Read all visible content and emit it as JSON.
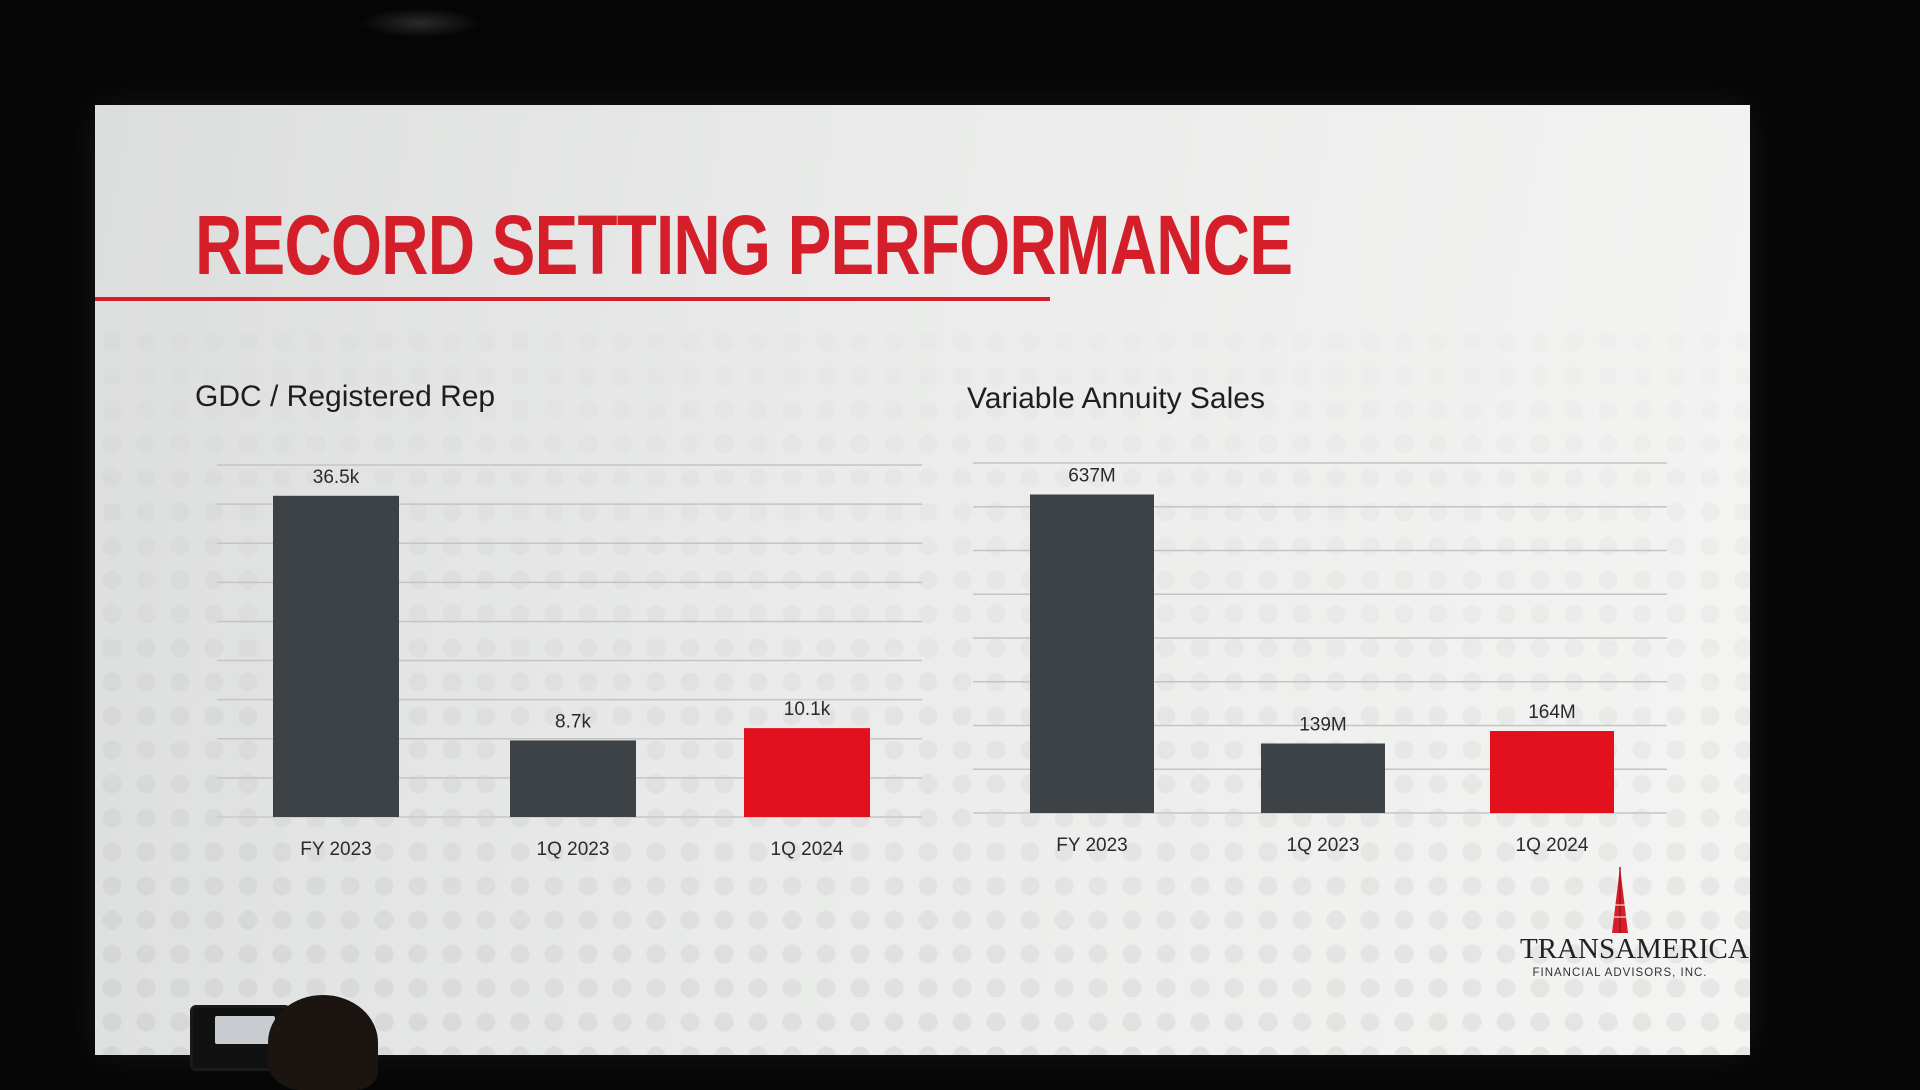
{
  "slide": {
    "title": "RECORD SETTING PERFORMANCE",
    "accent_color": "#d41f2b",
    "bar_color_dark": "#3c4245",
    "bar_color_highlight": "#e3101e"
  },
  "logo": {
    "name": "TRANSAMERICA",
    "subtitle": "FINANCIAL ADVISORS, INC."
  },
  "chart_data": [
    {
      "type": "bar",
      "title": "GDC / Registered Rep",
      "categories": [
        "FY 2023",
        "1Q 2023",
        "1Q 2024"
      ],
      "values": [
        36.5,
        8.7,
        10.1
      ],
      "value_labels": [
        "36.5k",
        "8.7k",
        "10.1k"
      ],
      "highlight_index": 2,
      "ylim": [
        0,
        40
      ],
      "grid": true,
      "xlabel": "",
      "ylabel": ""
    },
    {
      "type": "bar",
      "title": "Variable Annuity Sales",
      "categories": [
        "FY 2023",
        "1Q 2023",
        "1Q 2024"
      ],
      "values": [
        637,
        139,
        164
      ],
      "value_labels": [
        "637M",
        "139M",
        "164M"
      ],
      "highlight_index": 2,
      "ylim": [
        0,
        700
      ],
      "grid": true,
      "xlabel": "",
      "ylabel": ""
    }
  ]
}
